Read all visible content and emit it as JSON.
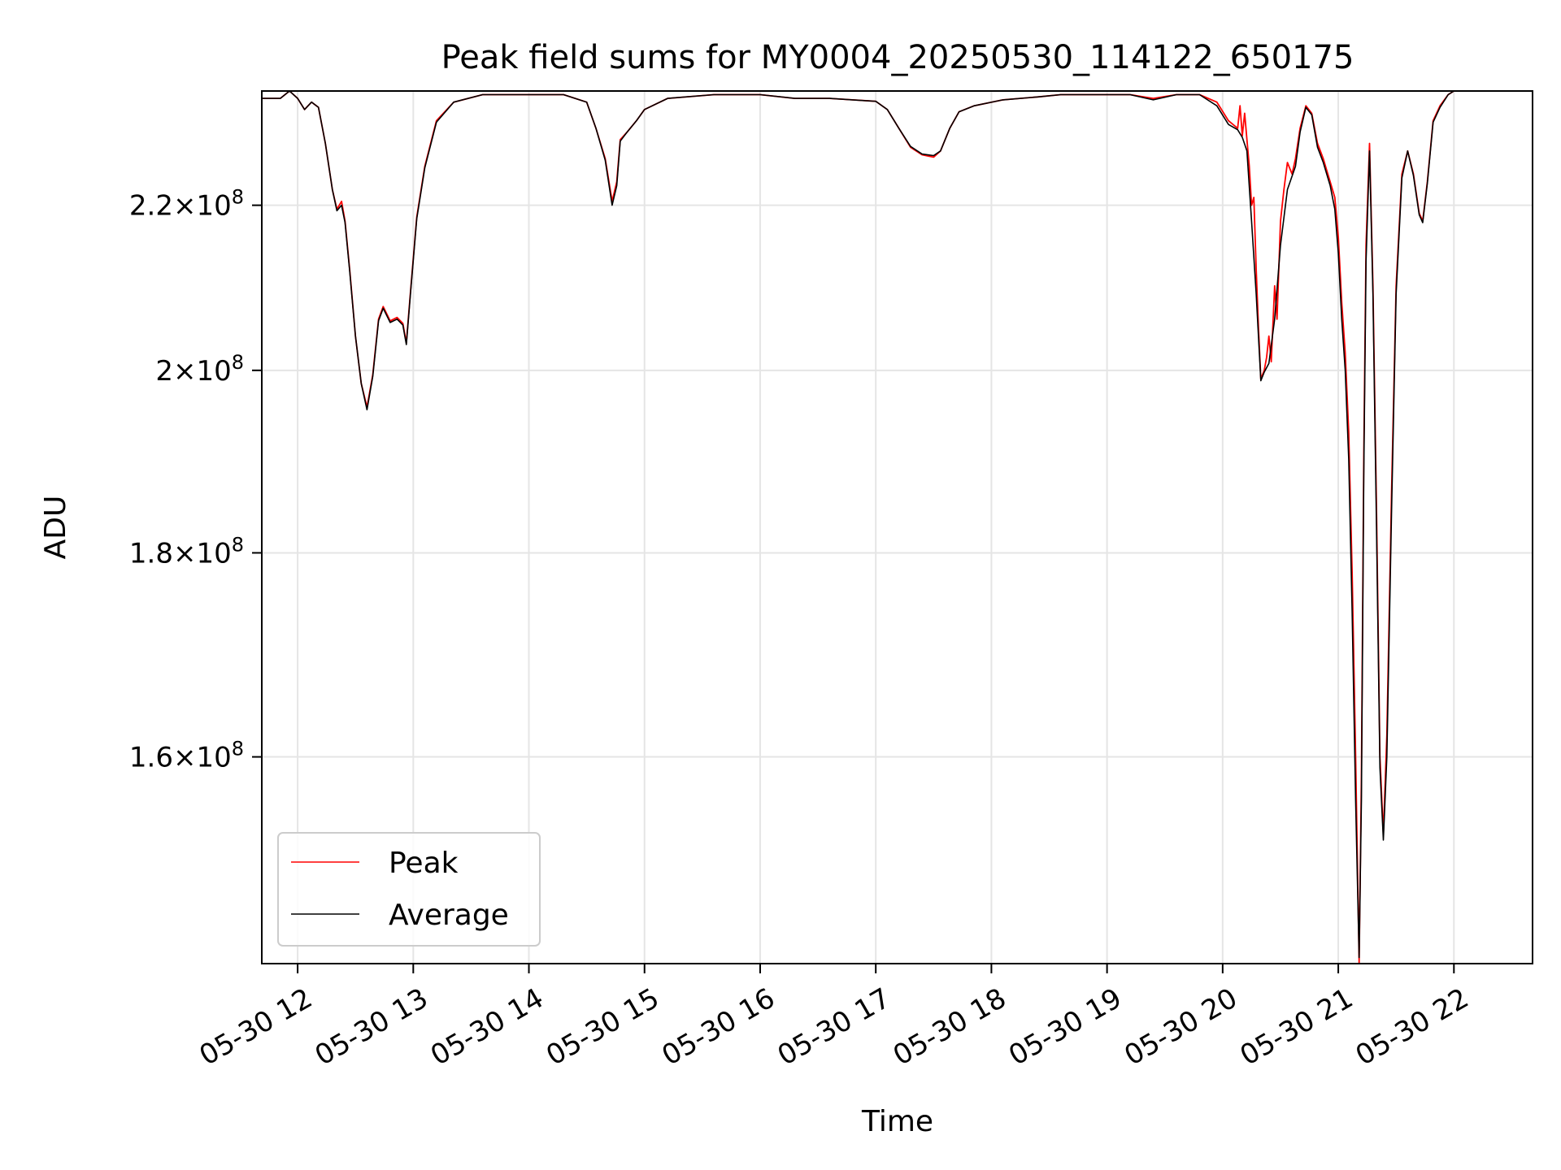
{
  "chart_data": {
    "type": "line",
    "title": "Peak field sums for MY0004_20250530_114122_650175",
    "xlabel": "Time",
    "ylabel": "ADU",
    "yscale": "log",
    "xlim": [
      11.69,
      22.68
    ],
    "ylim": [
      142000000.0,
      235000000.0
    ],
    "grid": true,
    "legend_position": "lower-left",
    "x_ticks": [
      {
        "value": 12,
        "label": "05-30 12"
      },
      {
        "value": 13,
        "label": "05-30 13"
      },
      {
        "value": 14,
        "label": "05-30 14"
      },
      {
        "value": 15,
        "label": "05-30 15"
      },
      {
        "value": 16,
        "label": "05-30 16"
      },
      {
        "value": 17,
        "label": "05-30 17"
      },
      {
        "value": 18,
        "label": "05-30 18"
      },
      {
        "value": 19,
        "label": "05-30 19"
      },
      {
        "value": 20,
        "label": "05-30 20"
      },
      {
        "value": 21,
        "label": "05-30 21"
      },
      {
        "value": 22,
        "label": "05-30 22"
      }
    ],
    "y_ticks": [
      {
        "value": 160000000.0,
        "mant": "1.6",
        "exp": "8"
      },
      {
        "value": 180000000.0,
        "mant": "1.8",
        "exp": "8"
      },
      {
        "value": 200000000.0,
        "mant": "2",
        "exp": "8"
      },
      {
        "value": 220000000.0,
        "mant": "2.2",
        "exp": "8"
      }
    ],
    "series": [
      {
        "name": "Peak",
        "color": "#ff0000",
        "points": [
          [
            11.69,
            234000000.0
          ],
          [
            11.85,
            234000000.0
          ],
          [
            11.93,
            235000000.0
          ],
          [
            12.0,
            234000000.0
          ],
          [
            12.06,
            232500000.0
          ],
          [
            12.12,
            233500000.0
          ],
          [
            12.18,
            232800000.0
          ],
          [
            12.24,
            228000000.0
          ],
          [
            12.3,
            222000000.0
          ],
          [
            12.34,
            219500000.0
          ],
          [
            12.38,
            220500000.0
          ],
          [
            12.41,
            218000000.0
          ],
          [
            12.45,
            212000000.0
          ],
          [
            12.5,
            204000000.0
          ],
          [
            12.55,
            198500000.0
          ],
          [
            12.6,
            195800000.0
          ],
          [
            12.65,
            199500000.0
          ],
          [
            12.7,
            206000000.0
          ],
          [
            12.74,
            207500000.0
          ],
          [
            12.8,
            205800000.0
          ],
          [
            12.86,
            206200000.0
          ],
          [
            12.91,
            205500000.0
          ],
          [
            12.94,
            203200000.0
          ],
          [
            12.98,
            210000000.0
          ],
          [
            13.03,
            218500000.0
          ],
          [
            13.1,
            225000000.0
          ],
          [
            13.2,
            231000000.0
          ],
          [
            13.35,
            233500000.0
          ],
          [
            13.6,
            234500000.0
          ],
          [
            14.0,
            234500000.0
          ],
          [
            14.3,
            234500000.0
          ],
          [
            14.5,
            233500000.0
          ],
          [
            14.58,
            230000000.0
          ],
          [
            14.66,
            226000000.0
          ],
          [
            14.72,
            220500000.0
          ],
          [
            14.76,
            223000000.0
          ],
          [
            14.79,
            228500000.0
          ],
          [
            14.85,
            229500000.0
          ],
          [
            14.93,
            231000000.0
          ],
          [
            15.0,
            232500000.0
          ],
          [
            15.2,
            234000000.0
          ],
          [
            15.6,
            234500000.0
          ],
          [
            16.0,
            234500000.0
          ],
          [
            16.3,
            234000000.0
          ],
          [
            16.6,
            234000000.0
          ],
          [
            16.8,
            233800000.0
          ],
          [
            17.0,
            233600000.0
          ],
          [
            17.1,
            232500000.0
          ],
          [
            17.2,
            230000000.0
          ],
          [
            17.3,
            227500000.0
          ],
          [
            17.4,
            226500000.0
          ],
          [
            17.5,
            226200000.0
          ],
          [
            17.56,
            227000000.0
          ],
          [
            17.64,
            230000000.0
          ],
          [
            17.72,
            232200000.0
          ],
          [
            17.85,
            233000000.0
          ],
          [
            18.1,
            233800000.0
          ],
          [
            18.4,
            234200000.0
          ],
          [
            18.6,
            234500000.0
          ],
          [
            18.8,
            234500000.0
          ],
          [
            19.0,
            234500000.0
          ],
          [
            19.2,
            234500000.0
          ],
          [
            19.4,
            234000000.0
          ],
          [
            19.6,
            234500000.0
          ],
          [
            19.8,
            234500000.0
          ],
          [
            19.95,
            233500000.0
          ],
          [
            20.05,
            231000000.0
          ],
          [
            20.13,
            230000000.0
          ],
          [
            20.15,
            233000000.0
          ],
          [
            20.17,
            229000000.0
          ],
          [
            20.19,
            232000000.0
          ],
          [
            20.21,
            228500000.0
          ],
          [
            20.23,
            225000000.0
          ],
          [
            20.25,
            220000000.0
          ],
          [
            20.27,
            221000000.0
          ],
          [
            20.29,
            212000000.0
          ],
          [
            20.31,
            205000000.0
          ],
          [
            20.33,
            199000000.0
          ],
          [
            20.36,
            200000000.0
          ],
          [
            20.38,
            201500000.0
          ],
          [
            20.4,
            204000000.0
          ],
          [
            20.42,
            201000000.0
          ],
          [
            20.45,
            210000000.0
          ],
          [
            20.47,
            206000000.0
          ],
          [
            20.5,
            218000000.0
          ],
          [
            20.53,
            222000000.0
          ],
          [
            20.56,
            225500000.0
          ],
          [
            20.6,
            224000000.0
          ],
          [
            20.63,
            226000000.0
          ],
          [
            20.67,
            230000000.0
          ],
          [
            20.72,
            233000000.0
          ],
          [
            20.77,
            232000000.0
          ],
          [
            20.82,
            228000000.0
          ],
          [
            20.87,
            226000000.0
          ],
          [
            20.9,
            224500000.0
          ],
          [
            20.93,
            223000000.0
          ],
          [
            20.97,
            221000000.0
          ],
          [
            21.0,
            216000000.0
          ],
          [
            21.03,
            208000000.0
          ],
          [
            21.06,
            202000000.0
          ],
          [
            21.09,
            193000000.0
          ],
          [
            21.12,
            178000000.0
          ],
          [
            21.15,
            160000000.0
          ],
          [
            21.18,
            142000000.0
          ],
          [
            21.2,
            158000000.0
          ],
          [
            21.22,
            190000000.0
          ],
          [
            21.24,
            215000000.0
          ],
          [
            21.27,
            228000000.0
          ],
          [
            21.3,
            210000000.0
          ],
          [
            21.33,
            185000000.0
          ],
          [
            21.36,
            160000000.0
          ],
          [
            21.39,
            153000000.0
          ],
          [
            21.42,
            162000000.0
          ],
          [
            21.46,
            186000000.0
          ],
          [
            21.5,
            210000000.0
          ],
          [
            21.55,
            224000000.0
          ],
          [
            21.6,
            227000000.0
          ],
          [
            21.65,
            224000000.0
          ],
          [
            21.7,
            219000000.0
          ],
          [
            21.73,
            218000000.0
          ],
          [
            21.77,
            223000000.0
          ],
          [
            21.82,
            231000000.0
          ],
          [
            21.88,
            233000000.0
          ],
          [
            21.95,
            234500000.0
          ],
          [
            22.0,
            235000000.0
          ]
        ]
      },
      {
        "name": "Average",
        "color": "#000000",
        "points": [
          [
            11.69,
            234000000.0
          ],
          [
            11.85,
            234000000.0
          ],
          [
            11.93,
            235000000.0
          ],
          [
            12.0,
            234000000.0
          ],
          [
            12.06,
            232500000.0
          ],
          [
            12.12,
            233500000.0
          ],
          [
            12.18,
            232800000.0
          ],
          [
            12.24,
            228000000.0
          ],
          [
            12.3,
            222000000.0
          ],
          [
            12.34,
            219300000.0
          ],
          [
            12.38,
            220000000.0
          ],
          [
            12.41,
            217800000.0
          ],
          [
            12.45,
            211800000.0
          ],
          [
            12.5,
            204000000.0
          ],
          [
            12.55,
            198500000.0
          ],
          [
            12.6,
            195500000.0
          ],
          [
            12.65,
            199300000.0
          ],
          [
            12.7,
            205800000.0
          ],
          [
            12.74,
            207300000.0
          ],
          [
            12.8,
            205600000.0
          ],
          [
            12.86,
            206000000.0
          ],
          [
            12.91,
            205300000.0
          ],
          [
            12.94,
            203000000.0
          ],
          [
            12.98,
            209800000.0
          ],
          [
            13.03,
            218300000.0
          ],
          [
            13.1,
            224800000.0
          ],
          [
            13.2,
            230800000.0
          ],
          [
            13.35,
            233500000.0
          ],
          [
            13.6,
            234500000.0
          ],
          [
            14.0,
            234500000.0
          ],
          [
            14.3,
            234500000.0
          ],
          [
            14.5,
            233500000.0
          ],
          [
            14.58,
            230000000.0
          ],
          [
            14.66,
            225800000.0
          ],
          [
            14.72,
            220000000.0
          ],
          [
            14.76,
            222500000.0
          ],
          [
            14.79,
            228300000.0
          ],
          [
            14.85,
            229500000.0
          ],
          [
            14.93,
            231000000.0
          ],
          [
            15.0,
            232500000.0
          ],
          [
            15.2,
            234000000.0
          ],
          [
            15.6,
            234500000.0
          ],
          [
            16.0,
            234500000.0
          ],
          [
            16.3,
            234000000.0
          ],
          [
            16.6,
            234000000.0
          ],
          [
            16.8,
            233800000.0
          ],
          [
            17.0,
            233600000.0
          ],
          [
            17.1,
            232500000.0
          ],
          [
            17.2,
            230000000.0
          ],
          [
            17.3,
            227600000.0
          ],
          [
            17.4,
            226600000.0
          ],
          [
            17.5,
            226400000.0
          ],
          [
            17.56,
            227000000.0
          ],
          [
            17.64,
            230000000.0
          ],
          [
            17.72,
            232200000.0
          ],
          [
            17.85,
            233000000.0
          ],
          [
            18.1,
            233800000.0
          ],
          [
            18.4,
            234200000.0
          ],
          [
            18.6,
            234500000.0
          ],
          [
            18.8,
            234500000.0
          ],
          [
            19.0,
            234500000.0
          ],
          [
            19.2,
            234500000.0
          ],
          [
            19.4,
            233800000.0
          ],
          [
            19.6,
            234500000.0
          ],
          [
            19.8,
            234500000.0
          ],
          [
            19.95,
            233000000.0
          ],
          [
            20.05,
            230500000.0
          ],
          [
            20.13,
            229800000.0
          ],
          [
            20.17,
            228800000.0
          ],
          [
            20.21,
            227000000.0
          ],
          [
            20.25,
            218000000.0
          ],
          [
            20.29,
            209000000.0
          ],
          [
            20.33,
            198800000.0
          ],
          [
            20.36,
            199800000.0
          ],
          [
            20.4,
            200800000.0
          ],
          [
            20.45,
            206000000.0
          ],
          [
            20.5,
            215000000.0
          ],
          [
            20.56,
            222000000.0
          ],
          [
            20.63,
            225000000.0
          ],
          [
            20.67,
            229500000.0
          ],
          [
            20.72,
            232800000.0
          ],
          [
            20.77,
            231800000.0
          ],
          [
            20.82,
            227500000.0
          ],
          [
            20.87,
            225500000.0
          ],
          [
            20.93,
            222500000.0
          ],
          [
            20.97,
            219500000.0
          ],
          [
            21.0,
            214000000.0
          ],
          [
            21.03,
            206000000.0
          ],
          [
            21.06,
            200000000.0
          ],
          [
            21.09,
            190000000.0
          ],
          [
            21.12,
            174000000.0
          ],
          [
            21.15,
            156000000.0
          ],
          [
            21.18,
            142500000.0
          ],
          [
            21.2,
            156000000.0
          ],
          [
            21.22,
            188000000.0
          ],
          [
            21.24,
            213000000.0
          ],
          [
            21.27,
            227000000.0
          ],
          [
            21.3,
            209000000.0
          ],
          [
            21.33,
            183000000.0
          ],
          [
            21.36,
            159000000.0
          ],
          [
            21.39,
            152500000.0
          ],
          [
            21.42,
            160000000.0
          ],
          [
            21.46,
            184000000.0
          ],
          [
            21.5,
            209000000.0
          ],
          [
            21.55,
            223500000.0
          ],
          [
            21.6,
            227000000.0
          ],
          [
            21.65,
            223800000.0
          ],
          [
            21.7,
            218800000.0
          ],
          [
            21.73,
            217800000.0
          ],
          [
            21.77,
            222800000.0
          ],
          [
            21.82,
            230800000.0
          ],
          [
            21.88,
            232800000.0
          ],
          [
            21.95,
            234500000.0
          ],
          [
            22.0,
            235000000.0
          ]
        ]
      }
    ]
  }
}
